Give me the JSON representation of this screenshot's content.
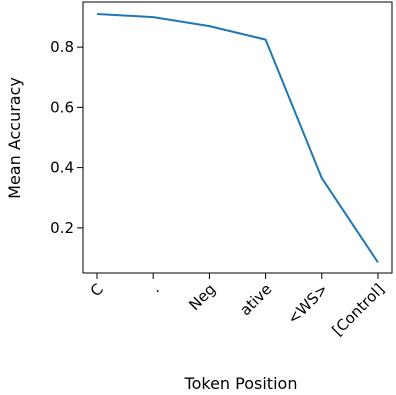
{
  "chart_data": {
    "type": "line",
    "title": "",
    "xlabel": "Token Position",
    "ylabel": "Mean Accuracy",
    "categories": [
      "C",
      ".",
      "Neg",
      "ative",
      "<WS>",
      "[Control]"
    ],
    "values": [
      0.91,
      0.9,
      0.87,
      0.825,
      0.365,
      0.085
    ],
    "ylim": [
      0.05,
      0.95
    ],
    "yticks": [
      0.2,
      0.4,
      0.6,
      0.8
    ],
    "ytick_labels": [
      "0.2",
      "0.4",
      "0.6",
      "0.8"
    ],
    "grid": false,
    "line_color": "#1f77b4"
  }
}
